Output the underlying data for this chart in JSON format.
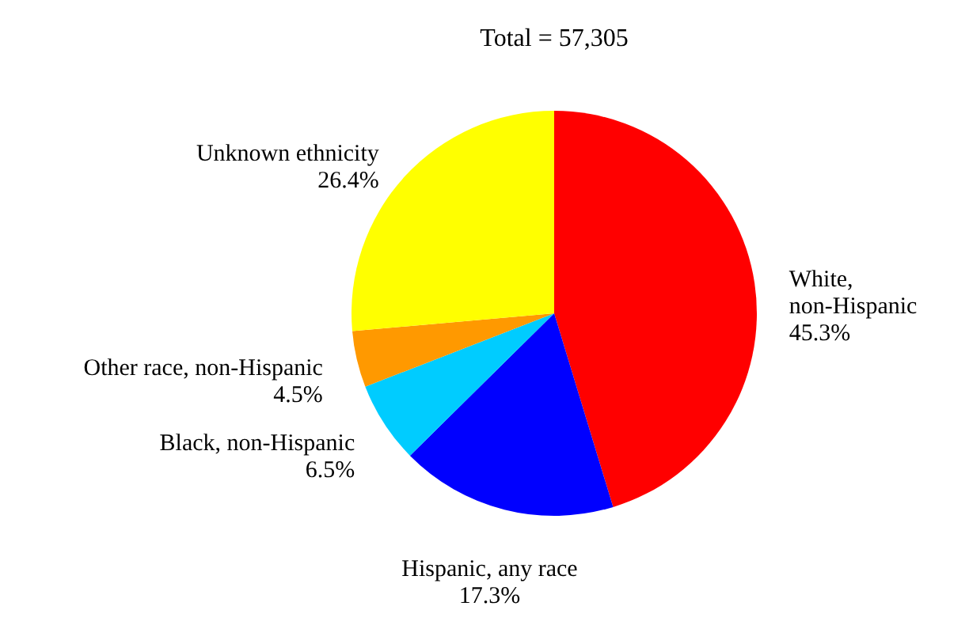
{
  "chart_data": {
    "type": "pie",
    "title": "Total = 57,305",
    "categories": [
      "White, non-Hispanic",
      "Hispanic, any race",
      "Black, non-Hispanic",
      "Other race, non-Hispanic",
      "Unknown ethnicity"
    ],
    "values": [
      45.3,
      17.3,
      6.5,
      4.5,
      26.4
    ],
    "value_labels": [
      "45.3%",
      "17.3%",
      "6.5%",
      "4.5%",
      "26.4%"
    ],
    "colors": [
      "#ff0000",
      "#0000ff",
      "#00ccff",
      "#ff9900",
      "#ffff00"
    ],
    "legend": false
  }
}
